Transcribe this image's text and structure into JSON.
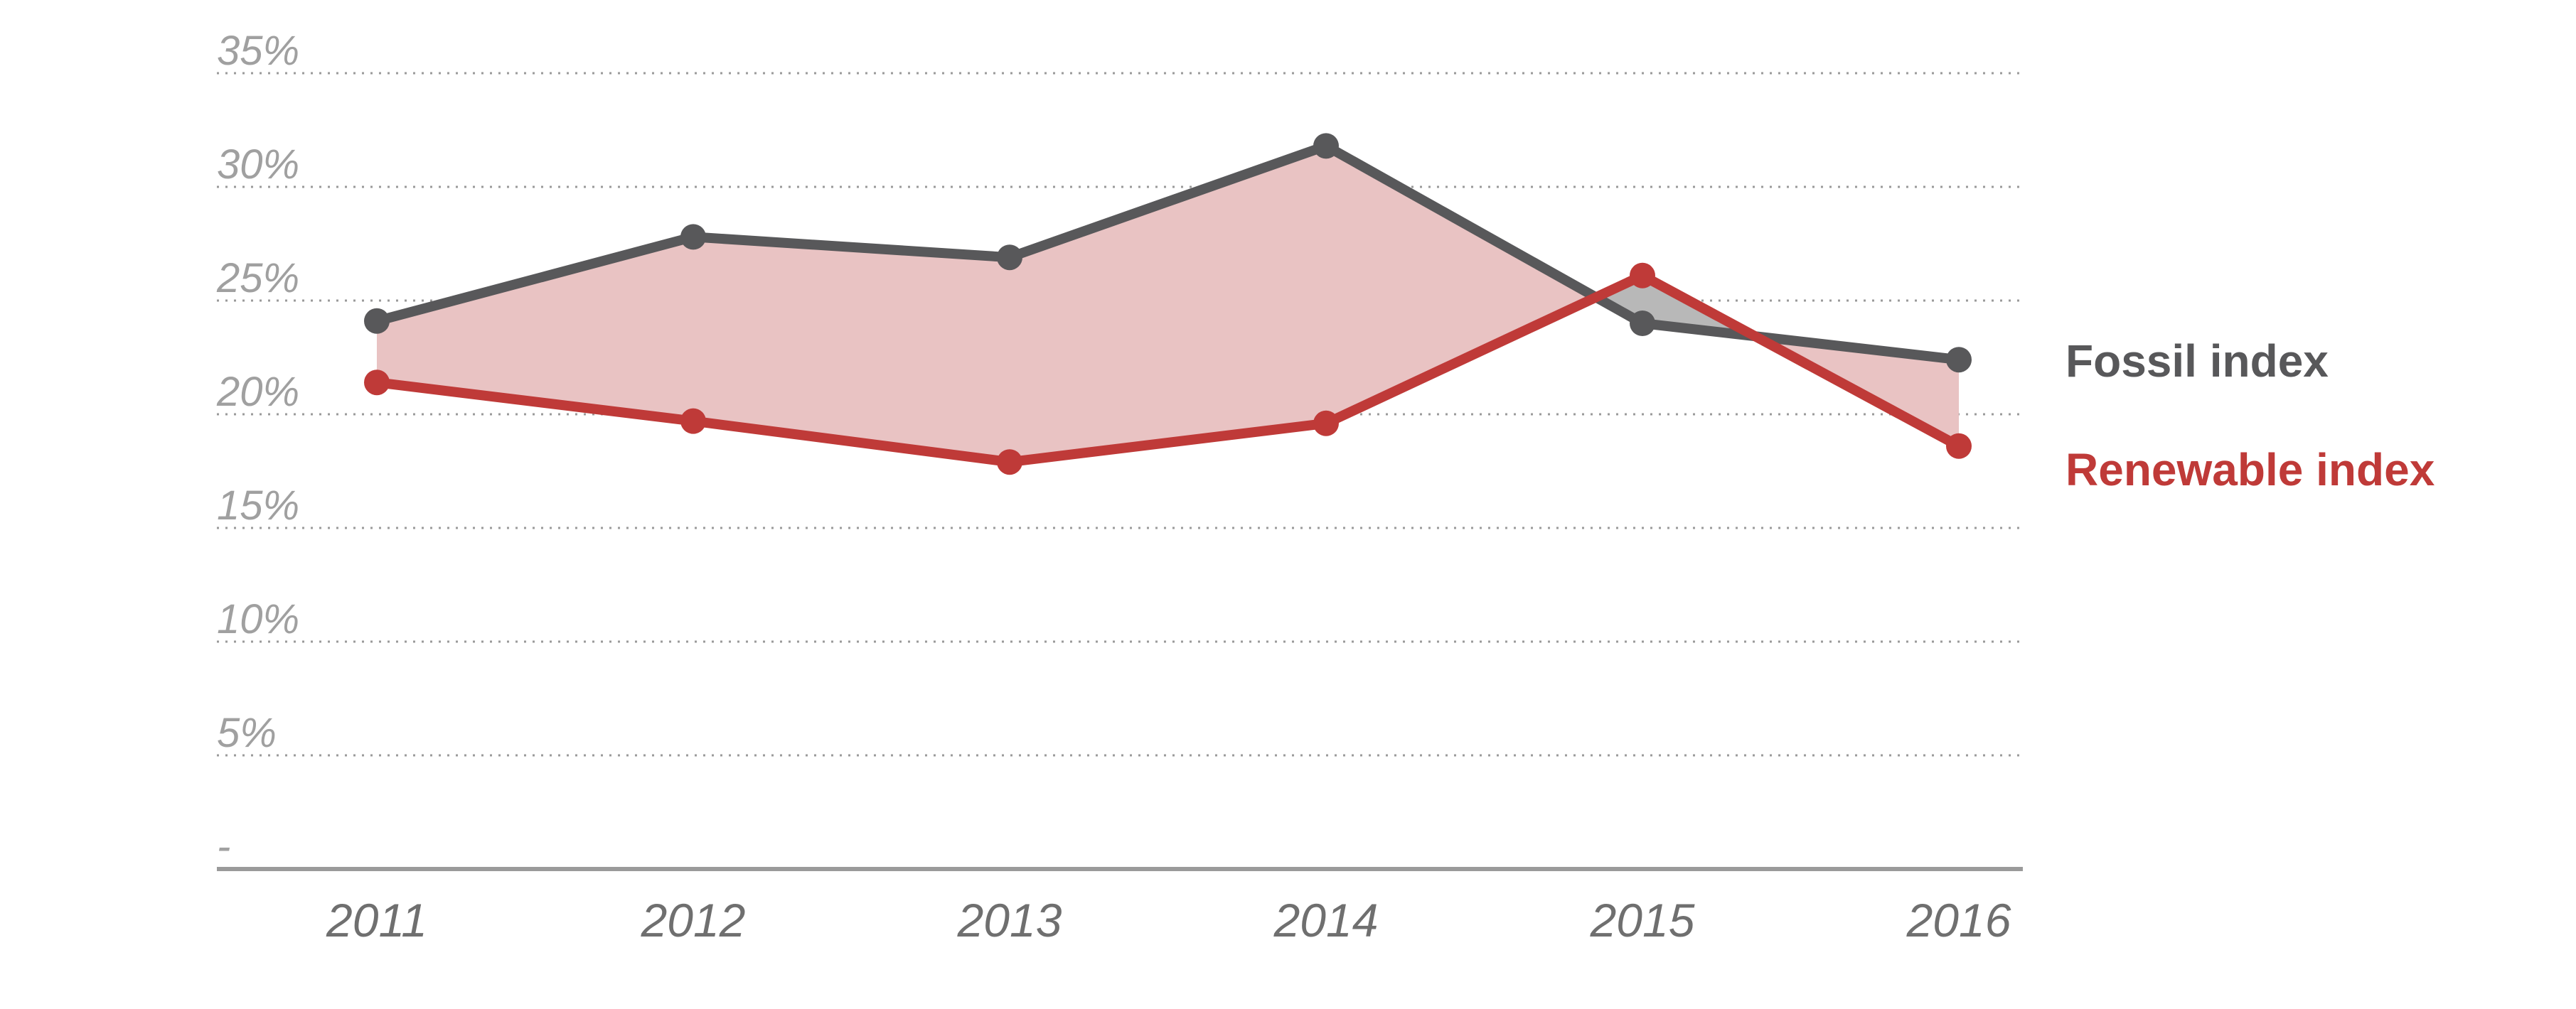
{
  "chart_data": {
    "type": "line",
    "title": "",
    "xlabel": "",
    "ylabel": "",
    "x": [
      "2011",
      "2012",
      "2013",
      "2014",
      "2015",
      "2016"
    ],
    "ylim": [
      0,
      35
    ],
    "yticks": [
      0,
      5,
      10,
      15,
      20,
      25,
      30,
      35
    ],
    "ytick_labels": [
      "-",
      "5%",
      "10%",
      "15%",
      "20%",
      "25%",
      "30%",
      "35%"
    ],
    "grid": "horizontal dotted",
    "legend_placement": "right",
    "series": [
      {
        "name": "Fossil index",
        "values": [
          24.1,
          27.8,
          26.9,
          31.8,
          24.0,
          22.4
        ],
        "color": "#58585a"
      },
      {
        "name": "Renewable index",
        "values": [
          21.4,
          19.7,
          17.9,
          19.6,
          26.1,
          18.6
        ],
        "color": "#bf3a38"
      }
    ],
    "fill_between": {
      "renewable_lower": "#e9c3c3",
      "fossil_lower": "#b8b8b8"
    }
  }
}
